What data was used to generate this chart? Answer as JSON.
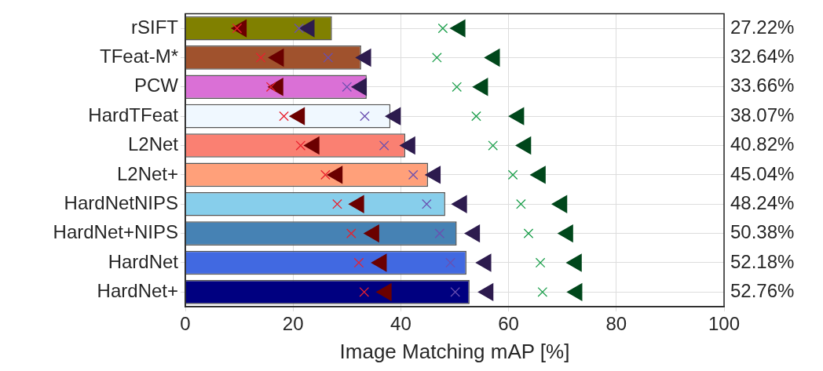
{
  "chart_data": {
    "type": "bar",
    "orientation": "horizontal",
    "xlabel": "Image Matching mAP [%]",
    "categories": [
      "rSIFT",
      "TFeat-M*",
      "PCW",
      "HardTFeat",
      "L2Net",
      "L2Net+",
      "HardNetNIPS",
      "HardNet+NIPS",
      "HardNet",
      "HardNet+"
    ],
    "xlim": [
      0,
      100
    ],
    "xticks": [
      0,
      20,
      40,
      60,
      80,
      100
    ],
    "grid": true,
    "legend": false,
    "series": [
      {
        "values": [
          27.22,
          32.64,
          33.66,
          38.07,
          40.82,
          45.04,
          48.24,
          50.38,
          52.18,
          52.76
        ],
        "colors": [
          "#808000",
          "#a0522d",
          "#da70d6",
          "#f0f8ff",
          "#fa8072",
          "#ffa07a",
          "#87ceeb",
          "#4682b4",
          "#4169e1",
          "#000080"
        ],
        "value_labels": [
          "27.22%",
          "32.64%",
          "33.66%",
          "38.07%",
          "40.82%",
          "45.04%",
          "48.24%",
          "50.38%",
          "52.18%",
          "52.76%"
        ]
      },
      {
        "type": "scatter",
        "marker": "cross",
        "color": "#e8212e",
        "values": [
          9.6,
          14.0,
          15.9,
          18.3,
          21.4,
          26.0,
          28.2,
          30.8,
          32.2,
          33.2
        ]
      },
      {
        "type": "scatter",
        "marker": "triangle",
        "color": "#6b0000",
        "values": [
          10.4,
          17.3,
          17.2,
          21.2,
          23.9,
          28.2,
          32.2,
          35.0,
          36.4,
          37.3
        ]
      },
      {
        "type": "scatter",
        "marker": "cross",
        "color": "#6a4fb0",
        "values": [
          21.1,
          26.5,
          30.0,
          33.3,
          36.9,
          42.3,
          44.8,
          47.2,
          49.2,
          50.1
        ]
      },
      {
        "type": "scatter",
        "marker": "triangle",
        "color": "#2d1b4e",
        "values": [
          23.0,
          33.5,
          32.7,
          39.0,
          41.7,
          46.4,
          51.3,
          53.7,
          55.8,
          56.2
        ]
      },
      {
        "type": "scatter",
        "marker": "cross",
        "color": "#1a9e4a",
        "values": [
          47.8,
          46.7,
          50.4,
          54.0,
          57.1,
          60.8,
          62.3,
          63.7,
          65.9,
          66.3
        ]
      },
      {
        "type": "scatter",
        "marker": "triangle",
        "color": "#00471b",
        "values": [
          51.0,
          57.4,
          55.2,
          61.9,
          63.2,
          65.9,
          69.9,
          71.0,
          72.6,
          72.7
        ]
      }
    ]
  }
}
